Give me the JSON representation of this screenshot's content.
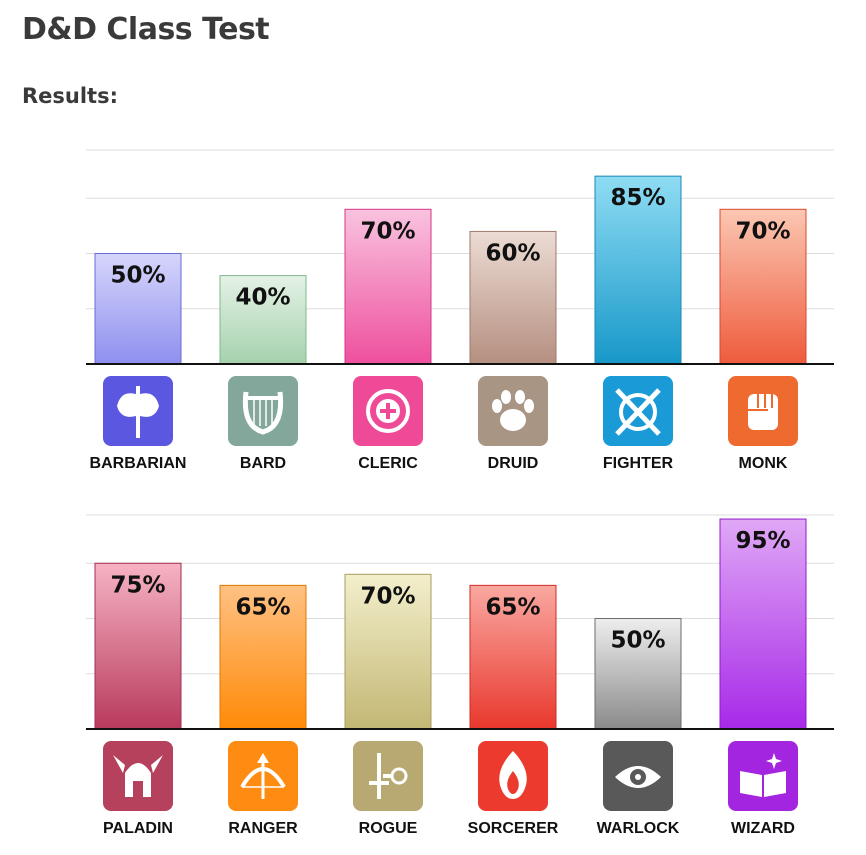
{
  "header": {
    "title": "D&D Class Test",
    "subtitle": "Results:"
  },
  "chart_data": [
    {
      "type": "bar",
      "categories": [
        "BARBARIAN",
        "BARD",
        "CLERIC",
        "DRUID",
        "FIGHTER",
        "MONK"
      ],
      "values": [
        50,
        40,
        70,
        60,
        85,
        70
      ],
      "data_labels": [
        "50%",
        "40%",
        "70%",
        "60%",
        "85%",
        "70%"
      ],
      "unit": "%",
      "ylim": [
        0,
        100
      ],
      "grid": true,
      "colors": [
        [
          "#d6d6fb",
          "#8f8ff0",
          "#6b6bd8"
        ],
        [
          "#e4f2e6",
          "#a5d1ad",
          "#7fb88a"
        ],
        [
          "#f9c3df",
          "#ee4f9e",
          "#d6378a"
        ],
        [
          "#ecdcd4",
          "#b58f80",
          "#9d7a6c"
        ],
        [
          "#8fdcf3",
          "#1798c9",
          "#1a88b8"
        ],
        [
          "#fbc7b3",
          "#ee5b3c",
          "#d94a2c"
        ]
      ],
      "icon_colors": [
        "#5b57e0",
        "#84a79b",
        "#ee4a97",
        "#a89584",
        "#1a9ad6",
        "#ef6a2e"
      ],
      "icons": [
        "battle-axe-icon",
        "lyre-icon",
        "holy-symbol-icon",
        "paw-icon",
        "crossed-swords-shield-icon",
        "fist-icon"
      ]
    },
    {
      "type": "bar",
      "categories": [
        "PALADIN",
        "RANGER",
        "ROGUE",
        "SORCERER",
        "WARLOCK",
        "WIZARD"
      ],
      "values": [
        75,
        65,
        70,
        65,
        50,
        95
      ],
      "data_labels": [
        "75%",
        "65%",
        "70%",
        "65%",
        "50%",
        "95%"
      ],
      "unit": "%",
      "ylim": [
        0,
        100
      ],
      "grid": true,
      "colors": [
        [
          "#f6b3c3",
          "#b83a5c",
          "#a32f50"
        ],
        [
          "#ffc183",
          "#ff8a07",
          "#e07800"
        ],
        [
          "#f3efcc",
          "#c3b774",
          "#a89d5e"
        ],
        [
          "#f9a8a1",
          "#e9382d",
          "#cf2d23"
        ],
        [
          "#eeeeee",
          "#8a8a8a",
          "#6e6e6e"
        ],
        [
          "#e0a8f6",
          "#a729e8",
          "#8f1ccc"
        ]
      ],
      "icon_colors": [
        "#b5415d",
        "#ff8c12",
        "#b8a972",
        "#ec3a2e",
        "#595959",
        "#a425e0"
      ],
      "icons": [
        "winged-helmet-icon",
        "bow-arrow-icon",
        "sword-key-icon",
        "flame-icon",
        "eye-icon",
        "spellbook-icon"
      ]
    }
  ]
}
